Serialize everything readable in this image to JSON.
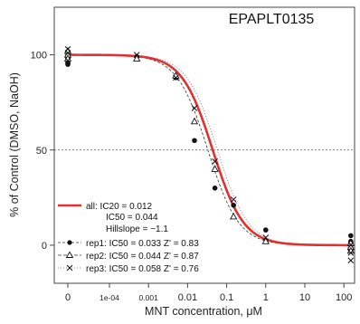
{
  "chart_data": {
    "type": "scatter",
    "title": "EPAPLT0135",
    "xlabel": "MNT concentration, μM",
    "ylabel": "% of Control (DMSO, NaOH)",
    "x_scale": "log",
    "x_tick_values": [
      0,
      0.0001,
      0.001,
      0.01,
      0.1,
      1,
      10,
      100
    ],
    "x_tick_labels": [
      "0",
      "1e-04",
      "0.001",
      "0.01",
      "0.1",
      "1",
      "10",
      "100"
    ],
    "y_ticks": [
      0,
      50,
      100
    ],
    "ylim": [
      -20,
      125
    ],
    "reference_line": 50,
    "series": [
      {
        "name": "rep1",
        "marker": "filled-circle",
        "ic50": 0.033,
        "points": [
          [
            0,
            97
          ],
          [
            0,
            99
          ],
          [
            0,
            101
          ],
          [
            0,
            95
          ],
          [
            0.0005,
            99
          ],
          [
            0.005,
            88
          ],
          [
            0.015,
            55
          ],
          [
            0.05,
            30
          ],
          [
            0.15,
            21
          ],
          [
            1,
            8
          ],
          [
            150,
            5
          ],
          [
            150,
            2
          ],
          [
            150,
            0
          ],
          [
            150,
            -2
          ]
        ]
      },
      {
        "name": "rep2",
        "marker": "open-triangle",
        "ic50": 0.044,
        "points": [
          [
            0,
            100
          ],
          [
            0,
            102
          ],
          [
            0,
            98
          ],
          [
            0.0005,
            98
          ],
          [
            0.005,
            89
          ],
          [
            0.015,
            65
          ],
          [
            0.05,
            40
          ],
          [
            0.15,
            15
          ],
          [
            1,
            2
          ],
          [
            150,
            1
          ],
          [
            150,
            -1
          ],
          [
            150,
            -3
          ]
        ]
      },
      {
        "name": "rep3",
        "marker": "x",
        "ic50": 0.058,
        "points": [
          [
            0,
            101
          ],
          [
            0,
            103
          ],
          [
            0,
            97
          ],
          [
            0.0005,
            100
          ],
          [
            0.005,
            88
          ],
          [
            0.015,
            72
          ],
          [
            0.05,
            44
          ],
          [
            0.15,
            24
          ],
          [
            1,
            4
          ],
          [
            150,
            0
          ],
          [
            150,
            -4
          ],
          [
            150,
            -8
          ]
        ]
      }
    ],
    "fits": [
      {
        "name": "all",
        "color": "#e03030",
        "ic50": 0.044,
        "top": 100,
        "bottom": 0,
        "hill": 1.1
      },
      {
        "name": "rep1",
        "color": "#333333",
        "ic50": 0.033,
        "top": 100,
        "bottom": 0,
        "hill": 1.1
      },
      {
        "name": "rep2",
        "color": "#333333",
        "ic50": 0.044,
        "top": 100,
        "bottom": 0,
        "hill": 1.1
      },
      {
        "name": "rep3",
        "color": "#666666",
        "ic50": 0.058,
        "top": 100,
        "bottom": 0,
        "hill": 1.1
      }
    ],
    "legend": {
      "position": "bottom-left",
      "lines": [
        "all: IC20 = 0.012",
        "IC50 = 0.044",
        "Hillslope = −1.1",
        "rep1: IC50 = 0.033  Z' = 0.83",
        "rep2: IC50 = 0.044  Z' = 0.87",
        "rep3: IC50 = 0.058  Z' = 0.76"
      ]
    }
  }
}
